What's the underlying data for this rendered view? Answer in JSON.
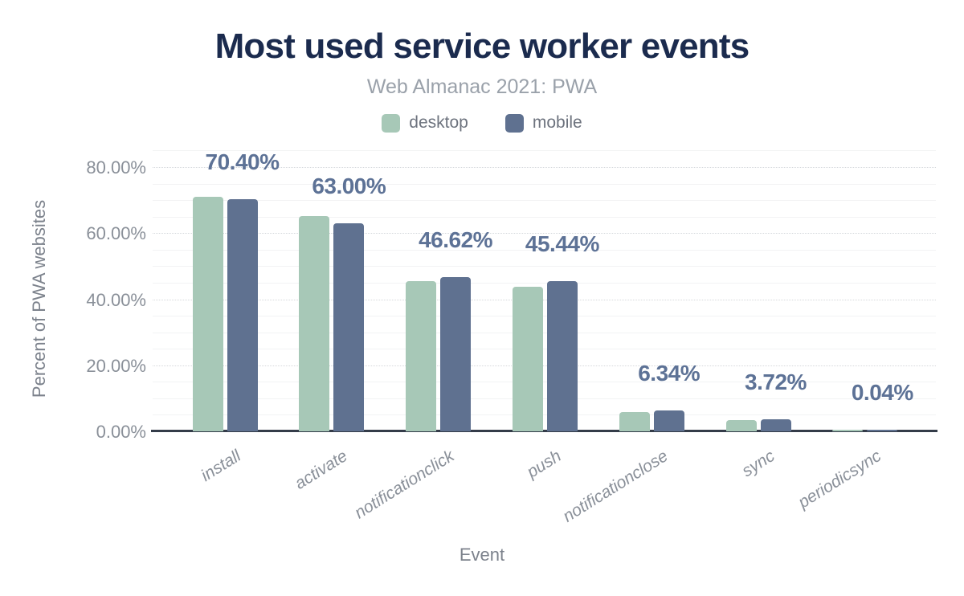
{
  "chart_data": {
    "type": "bar",
    "title": "Most used service worker events",
    "subtitle": "Web Almanac 2021: PWA",
    "categories": [
      "install",
      "activate",
      "notificationclick",
      "push",
      "notificationclose",
      "sync",
      "periodicsync"
    ],
    "series": [
      {
        "name": "desktop",
        "color": "#a7c8b7",
        "values": [
          71.0,
          65.2,
          45.6,
          43.7,
          5.8,
          3.3,
          0.04
        ]
      },
      {
        "name": "mobile",
        "color": "#5f7190",
        "values": [
          70.4,
          63.0,
          46.62,
          45.44,
          6.34,
          3.72,
          0.04
        ]
      }
    ],
    "annotations": {
      "series": "mobile",
      "labels": [
        "70.40%",
        "63.00%",
        "46.62%",
        "45.44%",
        "6.34%",
        "3.72%",
        "0.04%"
      ]
    },
    "xlabel": "Event",
    "ylabel": "Percent of PWA websites",
    "yticks": [
      {
        "value": 0,
        "label": "0.00%"
      },
      {
        "value": 20,
        "label": "20.00%"
      },
      {
        "value": 40,
        "label": "40.00%"
      },
      {
        "value": 60,
        "label": "60.00%"
      },
      {
        "value": 80,
        "label": "80.00%"
      }
    ],
    "ylim": [
      0,
      86
    ],
    "legend_position": "top",
    "grid": "horizontal: minor solid every 5%, major dotted every 20%"
  },
  "colors": {
    "title": "#1b2b4e",
    "subtitle": "#9aa1aa",
    "legend_text": "#6d737e",
    "tick_label": "#8a9099",
    "axis_title": "#7c828c",
    "data_label": "#5d7296",
    "axis_line": "#343c49",
    "grid_minor": "#f2f3f4",
    "grid_major": "#d5d8dc",
    "background": "#ffffff"
  }
}
